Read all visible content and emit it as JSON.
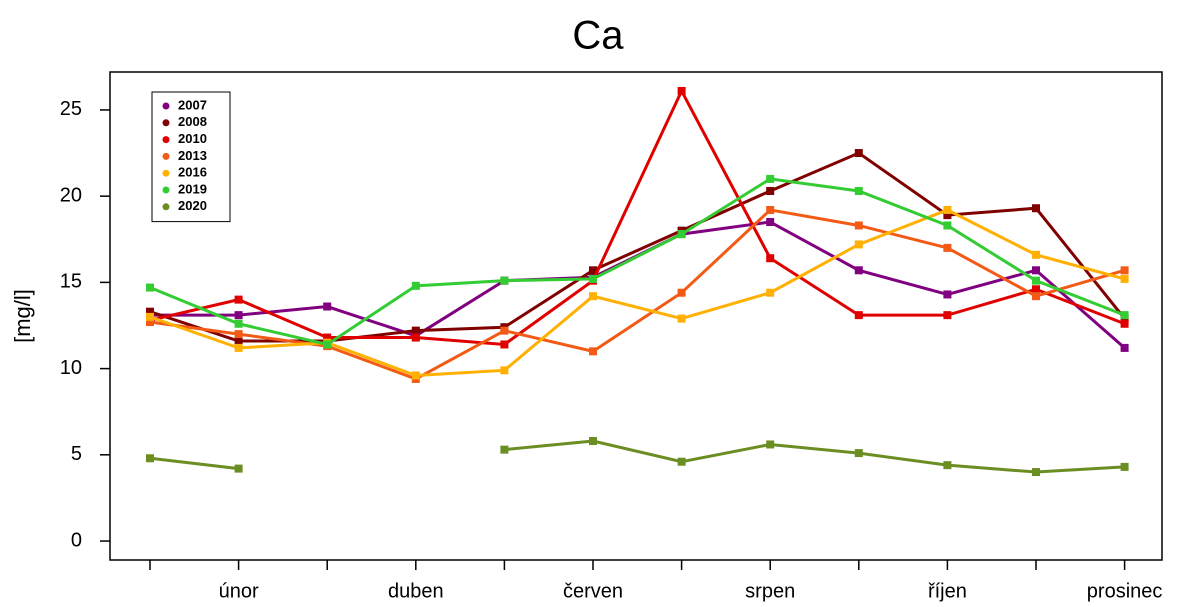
{
  "chart_data": {
    "type": "line",
    "title": "Ca",
    "ylabel": "[mg/l]",
    "categories": [
      null,
      "únor",
      null,
      "duben",
      null,
      "červen",
      null,
      "srpen",
      null,
      "říjen",
      null,
      "prosinec"
    ],
    "ylim": [
      -1.1,
      27.2
    ],
    "yticks": [
      0,
      5,
      10,
      15,
      20,
      25
    ],
    "legend": "upper left",
    "series": [
      {
        "name": "2007",
        "color": "#800080",
        "values": [
          13.1,
          13.1,
          13.6,
          11.9,
          15.1,
          15.3,
          17.8,
          18.5,
          15.7,
          14.3,
          15.7,
          11.2
        ]
      },
      {
        "name": "2008",
        "color": "#800000",
        "values": [
          13.3,
          11.6,
          11.6,
          12.2,
          12.4,
          15.7,
          18.0,
          20.3,
          22.5,
          18.9,
          19.3,
          12.9
        ]
      },
      {
        "name": "2010",
        "color": "#e00000",
        "values": [
          12.8,
          14.0,
          11.8,
          11.8,
          11.4,
          15.1,
          26.1,
          16.4,
          13.1,
          13.1,
          14.6,
          12.6
        ]
      },
      {
        "name": "2013",
        "color": "#f25a16",
        "values": [
          12.7,
          12.0,
          11.3,
          9.4,
          12.2,
          11.0,
          14.4,
          19.2,
          18.3,
          17.0,
          14.2,
          15.7
        ]
      },
      {
        "name": "2016",
        "color": "#ffb000",
        "values": [
          13.0,
          11.2,
          11.5,
          9.6,
          9.9,
          14.2,
          12.9,
          14.4,
          17.2,
          19.2,
          16.6,
          15.2
        ]
      },
      {
        "name": "2019",
        "color": "#33cc33",
        "values": [
          14.7,
          12.6,
          11.4,
          14.8,
          15.1,
          15.2,
          17.8,
          21.0,
          20.3,
          18.3,
          15.1,
          13.1
        ]
      },
      {
        "name": "2020",
        "color": "#6b8e23",
        "values": [
          4.8,
          4.2,
          null,
          null,
          5.3,
          5.8,
          4.6,
          5.6,
          5.1,
          4.4,
          4.0,
          4.3
        ]
      }
    ]
  }
}
